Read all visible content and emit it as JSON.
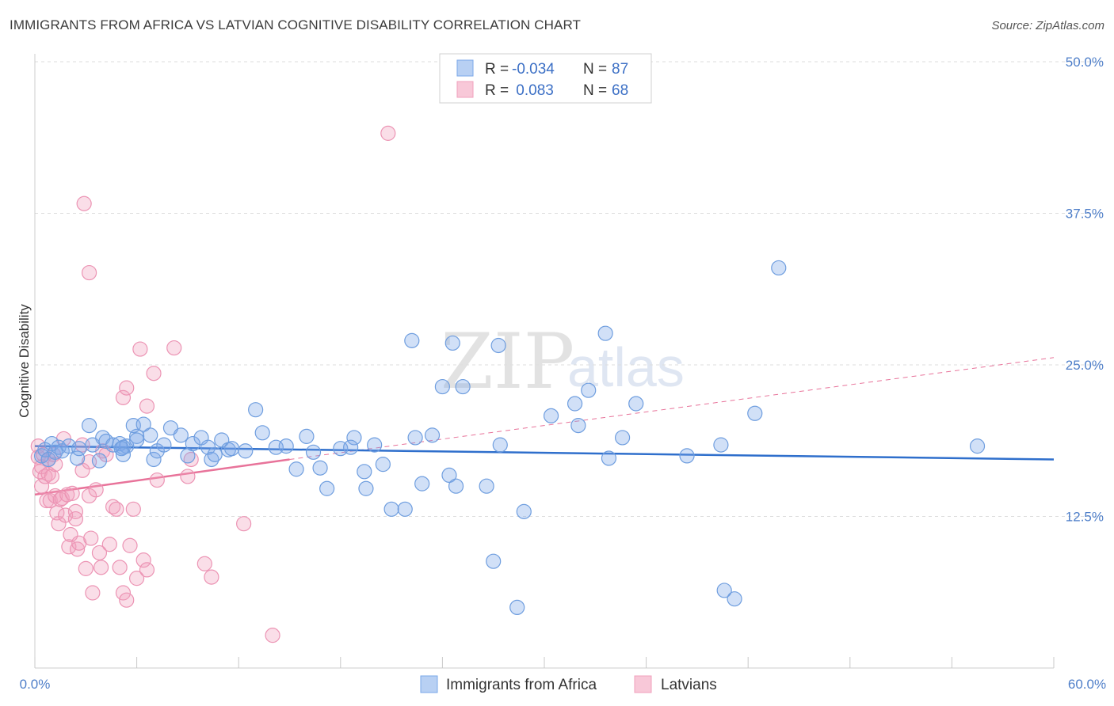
{
  "title": "IMMIGRANTS FROM AFRICA VS LATVIAN COGNITIVE DISABILITY CORRELATION CHART",
  "source": "Source: ZipAtlas.com",
  "watermark": {
    "zip": "ZIP",
    "atlas": "atlas"
  },
  "colors": {
    "blue": "#7aa7e8",
    "blue_line": "#2f6fcc",
    "pink": "#f0a0bc",
    "pink_line": "#e8739a",
    "tick": "#4f7fc9",
    "grid": "#dddddd"
  },
  "legend": {
    "rows": [
      {
        "r_label": "R =",
        "r_value": "-0.034",
        "n_label": "N =",
        "n_value": "87"
      },
      {
        "r_label": "R =",
        "r_value": " 0.083",
        "n_label": "N =",
        "n_value": "68"
      }
    ]
  },
  "chart_data": {
    "type": "scatter",
    "title": "IMMIGRANTS FROM AFRICA VS LATVIAN COGNITIVE DISABILITY CORRELATION CHART",
    "xlabel": "",
    "ylabel": "Cognitive Disability",
    "xlim": [
      0,
      60
    ],
    "ylim": [
      0,
      50
    ],
    "x_tick_labels": [
      "0.0%",
      "60.0%"
    ],
    "y_ticks": [
      12.5,
      25.0,
      37.5,
      50.0
    ],
    "y_tick_labels": [
      "12.5%",
      "25.0%",
      "37.5%",
      "50.0%"
    ],
    "series": [
      {
        "name": "Immigrants from Africa",
        "color": "#7aa7e8",
        "trend": {
          "x": [
            0,
            60
          ],
          "y": [
            18.3,
            17.2
          ],
          "dashed_extension": false
        },
        "points": [
          [
            0.4,
            17.5
          ],
          [
            0.6,
            18
          ],
          [
            0.8,
            17.2
          ],
          [
            1,
            18.5
          ],
          [
            1.2,
            17.8
          ],
          [
            1.4,
            18.2
          ],
          [
            1.6,
            17.9
          ],
          [
            2,
            18.3
          ],
          [
            2.5,
            17.3
          ],
          [
            2.6,
            18.1
          ],
          [
            3.2,
            20
          ],
          [
            3.4,
            18.4
          ],
          [
            3.8,
            17.1
          ],
          [
            4,
            19
          ],
          [
            4.2,
            18.7
          ],
          [
            4.6,
            18.4
          ],
          [
            5,
            18.5
          ],
          [
            5.4,
            18.3
          ],
          [
            5.2,
            18.2
          ],
          [
            5.1,
            18.1
          ],
          [
            5.2,
            17.6
          ],
          [
            6,
            19.1
          ],
          [
            5.8,
            20
          ],
          [
            6.8,
            19.2
          ],
          [
            6.4,
            20.1
          ],
          [
            6,
            18.8
          ],
          [
            7,
            17.2
          ],
          [
            7.2,
            17.9
          ],
          [
            8,
            19.8
          ],
          [
            7.6,
            18.4
          ],
          [
            8.6,
            19.2
          ],
          [
            9.3,
            18.5
          ],
          [
            9,
            17.5
          ],
          [
            9.8,
            19
          ],
          [
            10.2,
            18.2
          ],
          [
            10.4,
            17.2
          ],
          [
            10.6,
            17.6
          ],
          [
            11,
            18.8
          ],
          [
            11.4,
            18
          ],
          [
            11.6,
            18.1
          ],
          [
            13,
            21.3
          ],
          [
            12.4,
            17.9
          ],
          [
            13.4,
            19.4
          ],
          [
            14.2,
            18.2
          ],
          [
            14.8,
            18.3
          ],
          [
            15.4,
            16.4
          ],
          [
            16,
            19.1
          ],
          [
            16.4,
            17.8
          ],
          [
            16.8,
            16.5
          ],
          [
            17.2,
            14.8
          ],
          [
            18,
            18.1
          ],
          [
            18.8,
            19
          ],
          [
            18.6,
            18.2
          ],
          [
            19.4,
            16.2
          ],
          [
            19.5,
            14.8
          ],
          [
            20,
            18.4
          ],
          [
            21,
            13.1
          ],
          [
            20.5,
            16.8
          ],
          [
            21.8,
            13.1
          ],
          [
            22.2,
            27
          ],
          [
            22.4,
            19
          ],
          [
            22.8,
            15.2
          ],
          [
            23.4,
            19.2
          ],
          [
            24,
            23.2
          ],
          [
            24.4,
            15.9
          ],
          [
            24.8,
            15
          ],
          [
            24.6,
            26.8
          ],
          [
            25.2,
            23.2
          ],
          [
            26.6,
            15
          ],
          [
            27,
            8.8
          ],
          [
            27.3,
            26.6
          ],
          [
            27.4,
            18.4
          ],
          [
            28.4,
            5
          ],
          [
            28.8,
            12.9
          ],
          [
            30.4,
            20.8
          ],
          [
            31.8,
            21.8
          ],
          [
            32,
            20
          ],
          [
            32.6,
            22.9
          ],
          [
            33.6,
            27.6
          ],
          [
            33.8,
            17.3
          ],
          [
            34.6,
            19
          ],
          [
            35.4,
            21.8
          ],
          [
            38.4,
            17.5
          ],
          [
            40.4,
            18.4
          ],
          [
            40.6,
            6.4
          ],
          [
            41.2,
            5.7
          ],
          [
            42.4,
            21
          ],
          [
            43.8,
            33
          ],
          [
            55.5,
            18.3
          ]
        ]
      },
      {
        "name": "Latvians",
        "color": "#f0a0bc",
        "trend": {
          "x": [
            0,
            15
          ],
          "y": [
            14.3,
            17.2
          ],
          "dashed_extension": true,
          "extended_to": [
            60,
            25.6
          ]
        },
        "points": [
          [
            0.2,
            18.3
          ],
          [
            0.2,
            17.4
          ],
          [
            0.3,
            16.2
          ],
          [
            0.4,
            15
          ],
          [
            0.4,
            16.6
          ],
          [
            0.5,
            17.6
          ],
          [
            0.6,
            15.8
          ],
          [
            0.7,
            13.8
          ],
          [
            0.8,
            16
          ],
          [
            0.8,
            17.2
          ],
          [
            0.9,
            13.8
          ],
          [
            1,
            15.8
          ],
          [
            1.1,
            17.6
          ],
          [
            1.2,
            16.8
          ],
          [
            1.2,
            14.2
          ],
          [
            1.3,
            12.8
          ],
          [
            1.4,
            11.9
          ],
          [
            1.5,
            13.9
          ],
          [
            1.6,
            14
          ],
          [
            1.7,
            18.9
          ],
          [
            1.8,
            12.6
          ],
          [
            1.9,
            14.3
          ],
          [
            2,
            10
          ],
          [
            2.1,
            11
          ],
          [
            2.2,
            14.4
          ],
          [
            2.4,
            12.9
          ],
          [
            2.4,
            12.3
          ],
          [
            2.5,
            9.8
          ],
          [
            2.6,
            10.3
          ],
          [
            2.8,
            18.4
          ],
          [
            2.8,
            16.3
          ],
          [
            2.9,
            38.3
          ],
          [
            3,
            8.2
          ],
          [
            3.2,
            17
          ],
          [
            3.2,
            14.2
          ],
          [
            3.3,
            10.7
          ],
          [
            3.4,
            6.2
          ],
          [
            3.6,
            14.7
          ],
          [
            3.8,
            9.5
          ],
          [
            3.9,
            8.3
          ],
          [
            4,
            17.9
          ],
          [
            4.2,
            17.6
          ],
          [
            4.4,
            10.2
          ],
          [
            4.6,
            13.3
          ],
          [
            4.8,
            13.1
          ],
          [
            5,
            8.3
          ],
          [
            5.2,
            6.2
          ],
          [
            5.4,
            5.6
          ],
          [
            5.8,
            13.1
          ],
          [
            5.6,
            10.1
          ],
          [
            6,
            7.4
          ],
          [
            6.4,
            8.9
          ],
          [
            6.6,
            8.1
          ],
          [
            5.2,
            22.3
          ],
          [
            3.2,
            32.6
          ],
          [
            5.4,
            23.1
          ],
          [
            6.2,
            26.3
          ],
          [
            6.6,
            21.6
          ],
          [
            7,
            24.3
          ],
          [
            7.2,
            15.5
          ],
          [
            8.2,
            26.4
          ],
          [
            9.2,
            17.2
          ],
          [
            9,
            15.8
          ],
          [
            10,
            8.6
          ],
          [
            10.4,
            7.5
          ],
          [
            12.3,
            11.9
          ],
          [
            14,
            2.7
          ],
          [
            20.8,
            44.1
          ]
        ]
      }
    ]
  },
  "bottom_legend": {
    "series1": "Immigrants from Africa",
    "series2": "Latvians"
  }
}
